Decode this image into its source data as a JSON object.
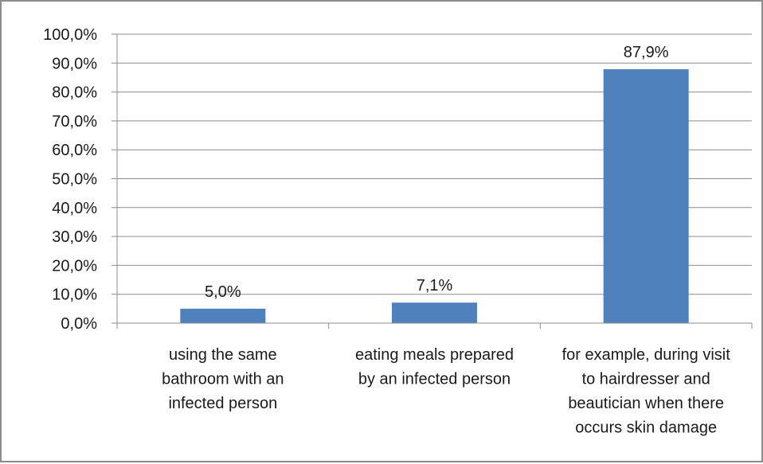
{
  "chart_data": {
    "type": "bar",
    "categories": [
      [
        "using the same",
        "bathroom with an",
        "infected person"
      ],
      [
        "eating meals prepared",
        "by an infected person"
      ],
      [
        "for example, during visit",
        "to hairdresser and",
        "beautician when there",
        "occurs skin damage"
      ]
    ],
    "values": [
      5.0,
      7.1,
      87.9
    ],
    "data_labels": [
      "5,0%",
      "7,1%",
      "87,9%"
    ],
    "ylim": [
      0,
      100
    ],
    "yticks": [
      0,
      10,
      20,
      30,
      40,
      50,
      60,
      70,
      80,
      90,
      100
    ],
    "ytick_labels": [
      "0,0%",
      "10,0%",
      "20,0%",
      "30,0%",
      "40,0%",
      "50,0%",
      "60,0%",
      "70,0%",
      "80,0%",
      "90,0%",
      "100,0%"
    ],
    "grid": true,
    "legend": "none",
    "bar_color": "#4f81bd",
    "grid_color": "#8c8c8c"
  }
}
